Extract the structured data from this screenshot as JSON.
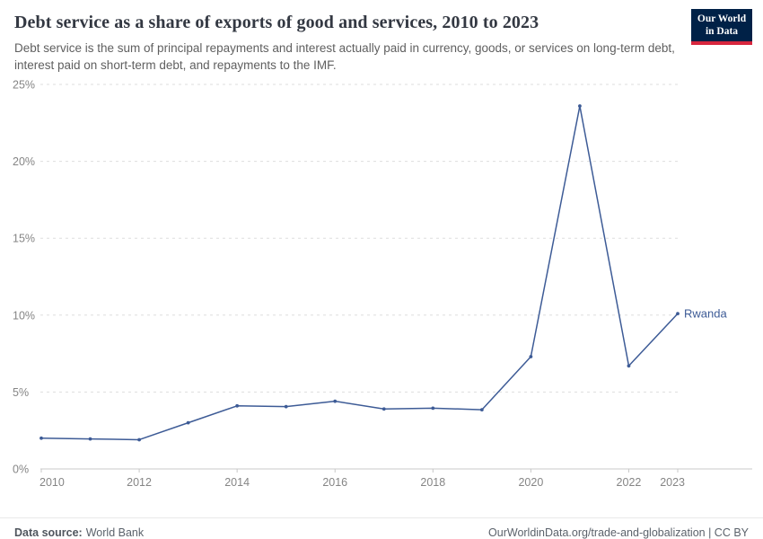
{
  "header": {
    "title": "Debt service as a share of exports of good and services, 2010 to 2023",
    "subtitle": "Debt service is the sum of principal repayments and interest actually paid in currency, goods, or services on long-term debt, interest paid on short-term debt, and repayments to the IMF.",
    "logo": {
      "line1": "Our World",
      "line2": "in Data",
      "bg_color": "#002147",
      "accent_color": "#d7263d"
    }
  },
  "chart_data": {
    "type": "line",
    "x": [
      2010,
      2011,
      2012,
      2013,
      2014,
      2015,
      2016,
      2017,
      2018,
      2019,
      2020,
      2021,
      2022,
      2023
    ],
    "series": [
      {
        "name": "Rwanda",
        "values": [
          2.0,
          1.95,
          1.9,
          3.0,
          4.1,
          4.05,
          4.4,
          3.9,
          3.95,
          3.85,
          7.3,
          23.6,
          6.7,
          10.1
        ]
      }
    ],
    "title": "Debt service as a share of exports of good and services, 2010 to 2023",
    "xlabel": "",
    "ylabel": "",
    "ylim": [
      0,
      25
    ],
    "yticks": [
      0,
      5,
      10,
      15,
      20,
      25
    ],
    "ytick_labels": [
      "0%",
      "5%",
      "10%",
      "15%",
      "20%",
      "25%"
    ],
    "xticks": [
      2010,
      2012,
      2014,
      2016,
      2018,
      2020,
      2022,
      2023
    ],
    "grid": true,
    "legend_position": "end-of-line-label",
    "line_color": "#3d5b96",
    "axis_label_color": "#858585",
    "grid_color": "#dedede",
    "zero_line_color": "#c8c8c8"
  },
  "footer": {
    "source_label": "Data source:",
    "source_value": "World Bank",
    "credit": "OurWorldinData.org/trade-and-globalization | CC BY"
  }
}
